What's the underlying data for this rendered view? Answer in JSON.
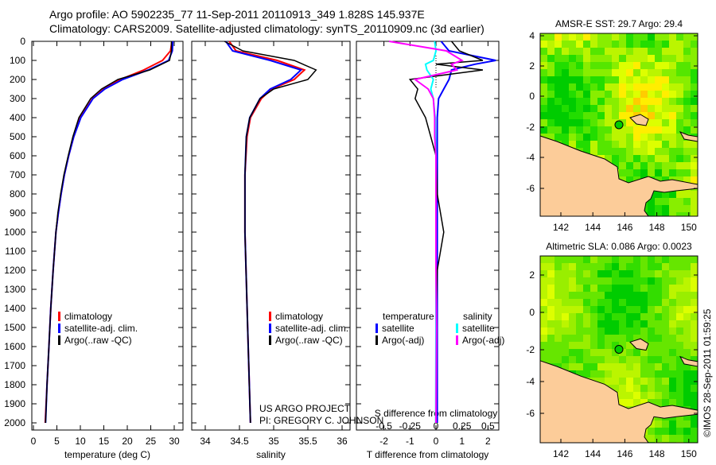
{
  "header": {
    "line1": "Argo profile: AO 5902235_77 11-Sep-2011 20110913_349 1.828S 145.937E",
    "line2": "Climatology: CARS2009. Satellite-adjusted climatology: synTS_20110909.nc (3d earlier)"
  },
  "colors": {
    "climatology": "#ff0000",
    "satellite": "#0000ff",
    "argo": "#000000",
    "sal_sat": "#00ffff",
    "sal_argo": "#ff00ff",
    "land": "#fccc99"
  },
  "credit": {
    "line1": "US ARGO PROJECT",
    "line2": "PI: GREGORY C. JOHNSON"
  },
  "stamp": "©IMOS 28-Sep-2011 01:59:25",
  "chart_data": [
    {
      "type": "line",
      "id": "temperature",
      "xlabel": "temperature (deg C)",
      "ylabel": "",
      "xlim": [
        -0.3,
        31.5
      ],
      "ylim": [
        2040,
        0
      ],
      "xticks": [
        0,
        5,
        10,
        15,
        20,
        25,
        30
      ],
      "yticks": [
        0,
        100,
        200,
        300,
        400,
        500,
        600,
        700,
        800,
        900,
        1000,
        1100,
        1200,
        1300,
        1400,
        1500,
        1600,
        1700,
        1800,
        1900,
        2000
      ],
      "legend": [
        "climatology",
        "satellite-adj. clim.",
        "Argo(..raw -QC)"
      ],
      "depth": [
        0,
        50,
        100,
        150,
        200,
        250,
        300,
        400,
        500,
        600,
        700,
        800,
        900,
        1000,
        1200,
        1400,
        1600,
        1800,
        2000
      ],
      "series": [
        {
          "name": "climatology",
          "values": [
            29.5,
            29.2,
            27.5,
            23.5,
            18.5,
            15,
            12.6,
            10,
            8.6,
            7.5,
            6.6,
            5.9,
            5.3,
            4.8,
            4.2,
            3.7,
            3.3,
            2.9,
            2.5
          ]
        },
        {
          "name": "satellite-adj. clim.",
          "values": [
            29.7,
            29.6,
            28.8,
            24.5,
            19,
            15.2,
            12.7,
            10.1,
            8.6,
            7.5,
            6.6,
            5.9,
            5.3,
            4.8,
            4.2,
            3.7,
            3.3,
            2.9,
            2.6
          ]
        },
        {
          "name": "Argo(..raw -QC)",
          "values": [
            29.4,
            29.4,
            29,
            24.8,
            18,
            14.5,
            12.2,
            9.7,
            8.4,
            7.4,
            6.5,
            5.8,
            5.2,
            4.8,
            4.2,
            3.7,
            3.3,
            2.9,
            2.6
          ]
        }
      ]
    },
    {
      "type": "line",
      "id": "salinity",
      "xlabel": "salinity",
      "xlim": [
        33.8,
        36.1
      ],
      "ylim": [
        2040,
        0
      ],
      "xticks": [
        34,
        34.5,
        35,
        35.5,
        36
      ],
      "legend": [
        "climatology",
        "satellite-adj. clim.",
        "Argo(..raw -QC)"
      ],
      "depth": [
        0,
        50,
        100,
        150,
        200,
        250,
        300,
        400,
        500,
        700,
        1000,
        1500,
        2000
      ],
      "series": [
        {
          "name": "climatology",
          "values": [
            34.35,
            34.45,
            35.05,
            35.45,
            35.3,
            34.97,
            34.82,
            34.66,
            34.61,
            34.58,
            34.58,
            34.62,
            34.66
          ]
        },
        {
          "name": "satellite-adj. clim.",
          "values": [
            34.3,
            34.4,
            34.95,
            35.4,
            35.25,
            34.95,
            34.8,
            34.65,
            34.6,
            34.58,
            34.58,
            34.62,
            34.66
          ]
        },
        {
          "name": "Argo(..raw -QC)",
          "values": [
            34.28,
            34.55,
            35.3,
            35.62,
            35.5,
            35.0,
            34.8,
            34.65,
            34.6,
            34.58,
            34.58,
            34.62,
            34.66
          ]
        }
      ]
    },
    {
      "type": "line",
      "id": "difference",
      "xlabel": "T difference from climatology",
      "x2label": "S difference from climatology",
      "xlim": [
        -3.1,
        2.45
      ],
      "ylim": [
        2040,
        0
      ],
      "xticks": [
        -2,
        -1,
        0,
        1,
        2
      ],
      "x2ticks": [
        "-0.5",
        "-0.25",
        "0",
        "0.25",
        "0.5"
      ],
      "legend_t": {
        "title": "temperature",
        "items": [
          "satellite",
          "Argo(-adj)"
        ]
      },
      "legend_s": {
        "title": "salinity",
        "items": [
          "satellite",
          "Argo(-adj)"
        ]
      },
      "depth": [
        0,
        50,
        100,
        120,
        150,
        200,
        250,
        300,
        400,
        500,
        600,
        800,
        1000,
        1200,
        1500,
        2000
      ],
      "series": [
        {
          "name": "T satellite",
          "values": [
            0.2,
            0.5,
            2.3,
            1.5,
            0.6,
            0.5,
            0.3,
            0.1,
            0.05,
            0.05,
            0.05,
            0.05,
            0.05,
            0.05,
            0.05,
            0.05
          ]
        },
        {
          "name": "T Argo(-adj)",
          "values": [
            0.6,
            0.9,
            1.8,
            0,
            1.8,
            -1,
            -0.7,
            -0.8,
            -0.4,
            -0.2,
            0,
            0.05,
            0.3,
            0.05,
            0,
            0
          ]
        },
        {
          "name": "S satellite (x4 scale)",
          "values": [
            -0.05,
            0,
            -0.1,
            -0.4,
            -0.35,
            -0.1,
            -0.2,
            -0.1,
            -0.03,
            -0.02,
            0,
            0,
            0,
            0,
            0,
            -0.01
          ]
        },
        {
          "name": "S Argo(-adj) (x4 scale)",
          "values": [
            -1.8,
            0.4,
            1,
            0.6,
            0.8,
            -0.8,
            -0.3,
            -0.1,
            -0.05,
            -0.05,
            0,
            0,
            0,
            0,
            0.02,
            0
          ]
        }
      ]
    },
    {
      "type": "heatmap",
      "id": "sst-map",
      "title": "AMSR-E SST: 29.7 Argo: 29.4",
      "xticks": [
        "142",
        "144",
        "146",
        "148",
        "150"
      ],
      "yticks": [
        "4",
        "2",
        "0",
        "-2",
        "-4",
        "-6"
      ],
      "float_position": {
        "lon": 145.937,
        "lat": -1.828
      }
    },
    {
      "type": "heatmap",
      "id": "sla-map",
      "title": "Altimetric SLA: 0.086 Argo: 0.0023",
      "xticks": [
        "142",
        "144",
        "146",
        "148",
        "150"
      ],
      "yticks": [
        "2",
        "0",
        "-2",
        "-4",
        "-6"
      ],
      "float_position": {
        "lon": 145.937,
        "lat": -1.828
      }
    }
  ]
}
